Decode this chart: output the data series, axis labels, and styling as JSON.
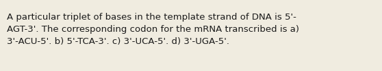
{
  "text": "A particular triplet of bases in the template strand of DNA is 5'-\nAGT-3'. The corresponding codon for the mRNA transcribed is a)\n3'-ACU-5'. b) 5'-TCA-3'. c) 3'-UCA-5'. d) 3'-UGA-5'.",
  "background_color": "#f0ece0",
  "text_color": "#1a1a1a",
  "font_size": 9.5,
  "fig_width": 5.58,
  "fig_height": 1.05,
  "dpi": 100
}
